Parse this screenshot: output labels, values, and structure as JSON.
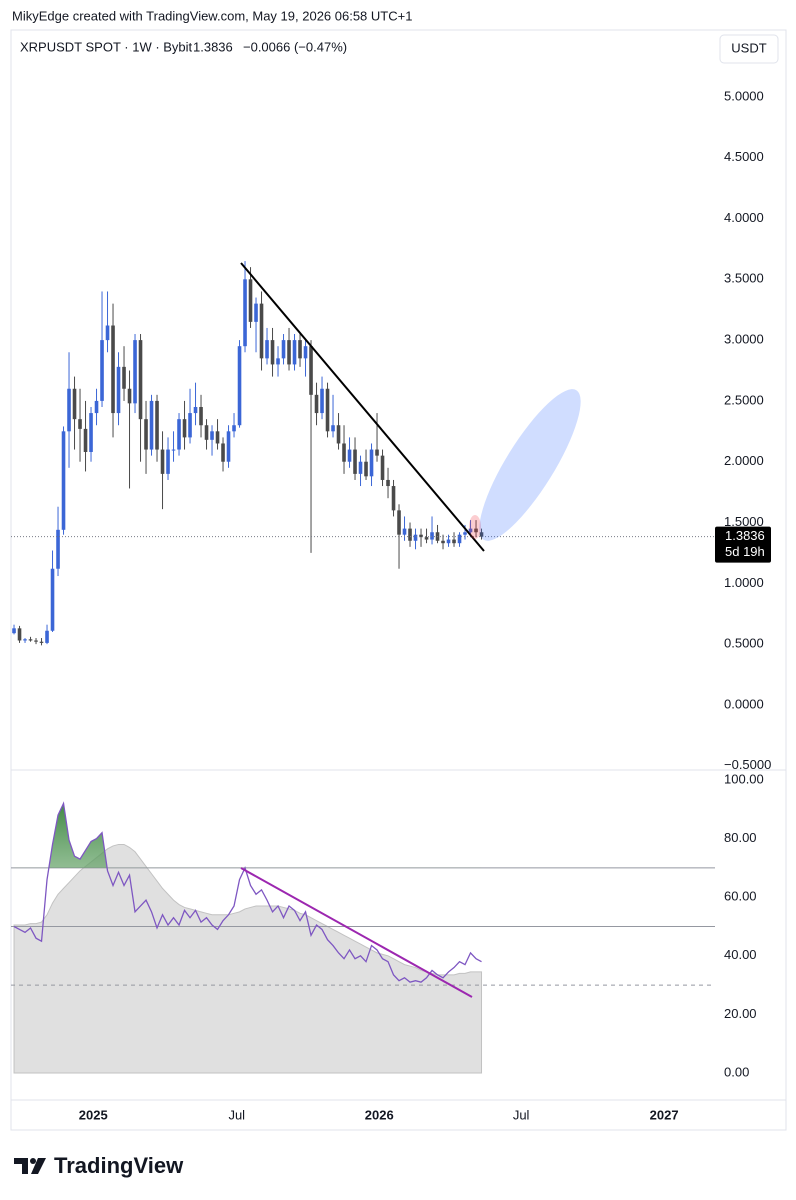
{
  "header": {
    "credit": "MikyEdge created with TradingView.com, May 19, 2026 06:58 UTC+1"
  },
  "chart_data": [
    {
      "type": "candlestick",
      "title": "XRPUSDT SPOT · 1W · Bybit",
      "last_price": 1.3836,
      "change": "−0.0066 (−0.47%)",
      "currency": "USDT",
      "countdown": "5d 19h",
      "up_color": "#3b66d6",
      "down_color": "#4a4a4a",
      "grid": false,
      "xlim": [
        -0.55,
        127.45
      ],
      "ylim": [
        -0.535,
        5.55
      ],
      "yticks": [
        {
          "value": 5,
          "label": "5.0000"
        },
        {
          "value": 4.5,
          "label": "4.5000"
        },
        {
          "value": 4,
          "label": "4.0000"
        },
        {
          "value": 3.5,
          "label": "3.5000"
        },
        {
          "value": 3,
          "label": "3.0000"
        },
        {
          "value": 2.5,
          "label": "2.5000"
        },
        {
          "value": 2,
          "label": "2.0000"
        },
        {
          "value": 1.5,
          "label": "1.5000"
        },
        {
          "value": 1,
          "label": "1.0000"
        },
        {
          "value": 0.5,
          "label": "0.5000"
        },
        {
          "value": 0,
          "label": "0.0000"
        },
        {
          "value": -0.5,
          "label": "−0.5000"
        }
      ],
      "open": [
        0.59,
        0.63,
        0.53,
        0.54,
        0.53,
        0.52,
        0.51,
        0.61,
        1.12,
        1.44,
        2.25,
        2.6,
        2.35,
        2.27,
        2.08,
        2.4,
        2.5,
        3.0,
        3.12,
        2.4,
        2.78,
        2.6,
        2.48,
        3.0,
        2.35,
        2.1,
        2.5,
        2.1,
        1.9,
        2.1,
        2.1,
        2.35,
        2.2,
        2.4,
        2.45,
        2.3,
        2.18,
        2.25,
        2.15,
        2.0,
        2.25,
        2.3,
        2.95,
        3.5,
        3.15,
        3.3,
        2.85,
        3.0,
        2.8,
        2.85,
        3.0,
        2.8,
        3.0,
        2.85,
        2.95,
        2.55,
        2.4,
        2.6,
        2.25,
        2.3,
        2.15,
        2.0,
        2.1,
        1.9,
        2.0,
        1.88,
        2.1,
        2.05,
        1.85,
        1.8,
        1.6,
        1.4,
        1.45,
        1.35,
        1.4,
        1.38,
        1.36,
        1.42,
        1.35,
        1.33,
        1.36,
        1.33,
        1.4,
        1.42,
        1.45,
        1.42
      ],
      "high": [
        0.66,
        0.65,
        0.55,
        0.56,
        0.55,
        0.55,
        0.66,
        1.27,
        1.63,
        2.29,
        2.9,
        2.7,
        2.6,
        2.5,
        2.45,
        2.6,
        3.4,
        3.4,
        3.3,
        2.9,
        2.95,
        2.75,
        3.05,
        3.05,
        2.5,
        2.55,
        2.55,
        2.25,
        2.2,
        2.25,
        2.4,
        2.5,
        2.6,
        2.65,
        2.55,
        2.35,
        2.3,
        2.35,
        2.2,
        2.3,
        2.4,
        3.0,
        3.65,
        3.6,
        3.35,
        3.4,
        3.1,
        3.1,
        2.95,
        3.05,
        3.1,
        3.05,
        3.05,
        3.0,
        3.0,
        2.65,
        2.7,
        2.65,
        2.55,
        2.4,
        2.3,
        2.2,
        2.2,
        2.05,
        2.1,
        2.15,
        2.4,
        2.1,
        1.95,
        1.85,
        1.65,
        1.55,
        1.5,
        1.45,
        1.45,
        1.45,
        1.55,
        1.48,
        1.4,
        1.4,
        1.42,
        1.42,
        1.48,
        1.52,
        1.52,
        1.45
      ],
      "low": [
        0.58,
        0.51,
        0.51,
        0.52,
        0.5,
        0.49,
        0.5,
        0.6,
        1.06,
        1.4,
        1.95,
        2.1,
        2.0,
        1.92,
        2.0,
        2.3,
        2.45,
        2.9,
        2.2,
        2.3,
        2.5,
        1.78,
        2.4,
        2.0,
        1.9,
        2.05,
        2.0,
        1.61,
        1.85,
        2.0,
        2.05,
        2.1,
        2.15,
        2.3,
        2.2,
        2.1,
        2.05,
        2.1,
        1.92,
        1.95,
        2.2,
        2.28,
        2.9,
        3.1,
        2.9,
        2.75,
        2.8,
        2.7,
        2.7,
        2.8,
        2.75,
        2.75,
        2.78,
        2.7,
        1.25,
        2.3,
        2.35,
        2.2,
        2.2,
        2.1,
        1.9,
        1.95,
        1.85,
        1.8,
        1.85,
        1.8,
        2.0,
        1.8,
        1.7,
        1.55,
        1.12,
        1.35,
        1.3,
        1.28,
        1.3,
        1.33,
        1.32,
        1.33,
        1.28,
        1.3,
        1.3,
        1.3,
        1.36,
        1.38,
        1.38,
        1.36
      ],
      "close": [
        0.63,
        0.53,
        0.54,
        0.53,
        0.52,
        0.51,
        0.61,
        1.12,
        1.44,
        2.25,
        2.6,
        2.35,
        2.27,
        2.08,
        2.4,
        2.5,
        3.0,
        3.12,
        2.4,
        2.78,
        2.6,
        2.48,
        3.0,
        2.35,
        2.1,
        2.5,
        2.1,
        1.9,
        2.1,
        2.1,
        2.35,
        2.2,
        2.4,
        2.45,
        2.3,
        2.18,
        2.25,
        2.15,
        2.0,
        2.25,
        2.3,
        2.95,
        3.5,
        3.15,
        3.3,
        2.85,
        3.0,
        2.8,
        2.85,
        3.0,
        2.8,
        3.0,
        2.85,
        2.95,
        2.55,
        2.4,
        2.6,
        2.25,
        2.3,
        2.15,
        2.0,
        2.1,
        1.9,
        2.0,
        1.88,
        2.1,
        2.05,
        1.85,
        1.8,
        1.6,
        1.4,
        1.45,
        1.35,
        1.4,
        1.38,
        1.36,
        1.42,
        1.35,
        1.33,
        1.36,
        1.33,
        1.4,
        1.42,
        1.45,
        1.42,
        1.3836
      ]
    },
    {
      "type": "line",
      "color": "#7e57c2",
      "ma_color": "#e0e0e0",
      "overbought_color": "#4caf50",
      "grid": false,
      "xlim": [
        -0.55,
        127.45
      ],
      "ylim": [
        -9.2,
        103.4
      ],
      "xticks": [
        {
          "value": 14.4,
          "label": "2025"
        },
        {
          "value": 40.5,
          "label": "Jul"
        },
        {
          "value": 66.4,
          "label": "2026"
        },
        {
          "value": 92.2,
          "label": "Jul"
        },
        {
          "value": 118.2,
          "label": "2027"
        }
      ],
      "yticks": [
        {
          "value": 100,
          "label": "100.00"
        },
        {
          "value": 80,
          "label": "80.00"
        },
        {
          "value": 60,
          "label": "60.00"
        },
        {
          "value": 40,
          "label": "40.00"
        },
        {
          "value": 20,
          "label": "20.00"
        },
        {
          "value": 0,
          "label": "0.00"
        }
      ],
      "levels": [
        70,
        50,
        30
      ],
      "level_dashed": [
        false,
        false,
        true
      ],
      "values": [
        50,
        49,
        48,
        49.5,
        46,
        45,
        66,
        78,
        88,
        92,
        79.5,
        74,
        73,
        76,
        79,
        80,
        82,
        69,
        64,
        68.5,
        64,
        67.5,
        55,
        57,
        59,
        55,
        49.5,
        54,
        50.5,
        53,
        50.5,
        55.5,
        53,
        55.5,
        51.5,
        53,
        50.5,
        49,
        52,
        54,
        57,
        66,
        70,
        64,
        61,
        62.5,
        59,
        55,
        57,
        53,
        57,
        55.5,
        52,
        55,
        47,
        50.5,
        49,
        45.5,
        43.5,
        41,
        39,
        42,
        39,
        40,
        38,
        43.5,
        42,
        39,
        38,
        33.5,
        31.5,
        32.5,
        31,
        31.5,
        31,
        32.5,
        35,
        33.5,
        32.5,
        34.5,
        36,
        38,
        37,
        41,
        39,
        38
      ],
      "ma_values": [
        50.5,
        50.5,
        50.5,
        51,
        51,
        51.5,
        54,
        58,
        61,
        63,
        65,
        67,
        69,
        70.5,
        72,
        73.5,
        75,
        76.5,
        77.5,
        78,
        78,
        77,
        75.5,
        73,
        70.5,
        68,
        65.5,
        63,
        61,
        59,
        57.5,
        56.5,
        56,
        55.5,
        55,
        54.5,
        54,
        54,
        54,
        54,
        54.5,
        55,
        56,
        56.5,
        57,
        57,
        57,
        57,
        57,
        56.5,
        56,
        55.5,
        54.5,
        54,
        53,
        52,
        51,
        50,
        49,
        48,
        47,
        46,
        45,
        44,
        43,
        42,
        41,
        40.5,
        40,
        39,
        38,
        37,
        36.5,
        36,
        35,
        34.5,
        34,
        33.5,
        33.5,
        33.5,
        33.5,
        34,
        34,
        34.5,
        34.5,
        34.5
      ]
    }
  ],
  "footer": {
    "brand": "TradingView"
  }
}
